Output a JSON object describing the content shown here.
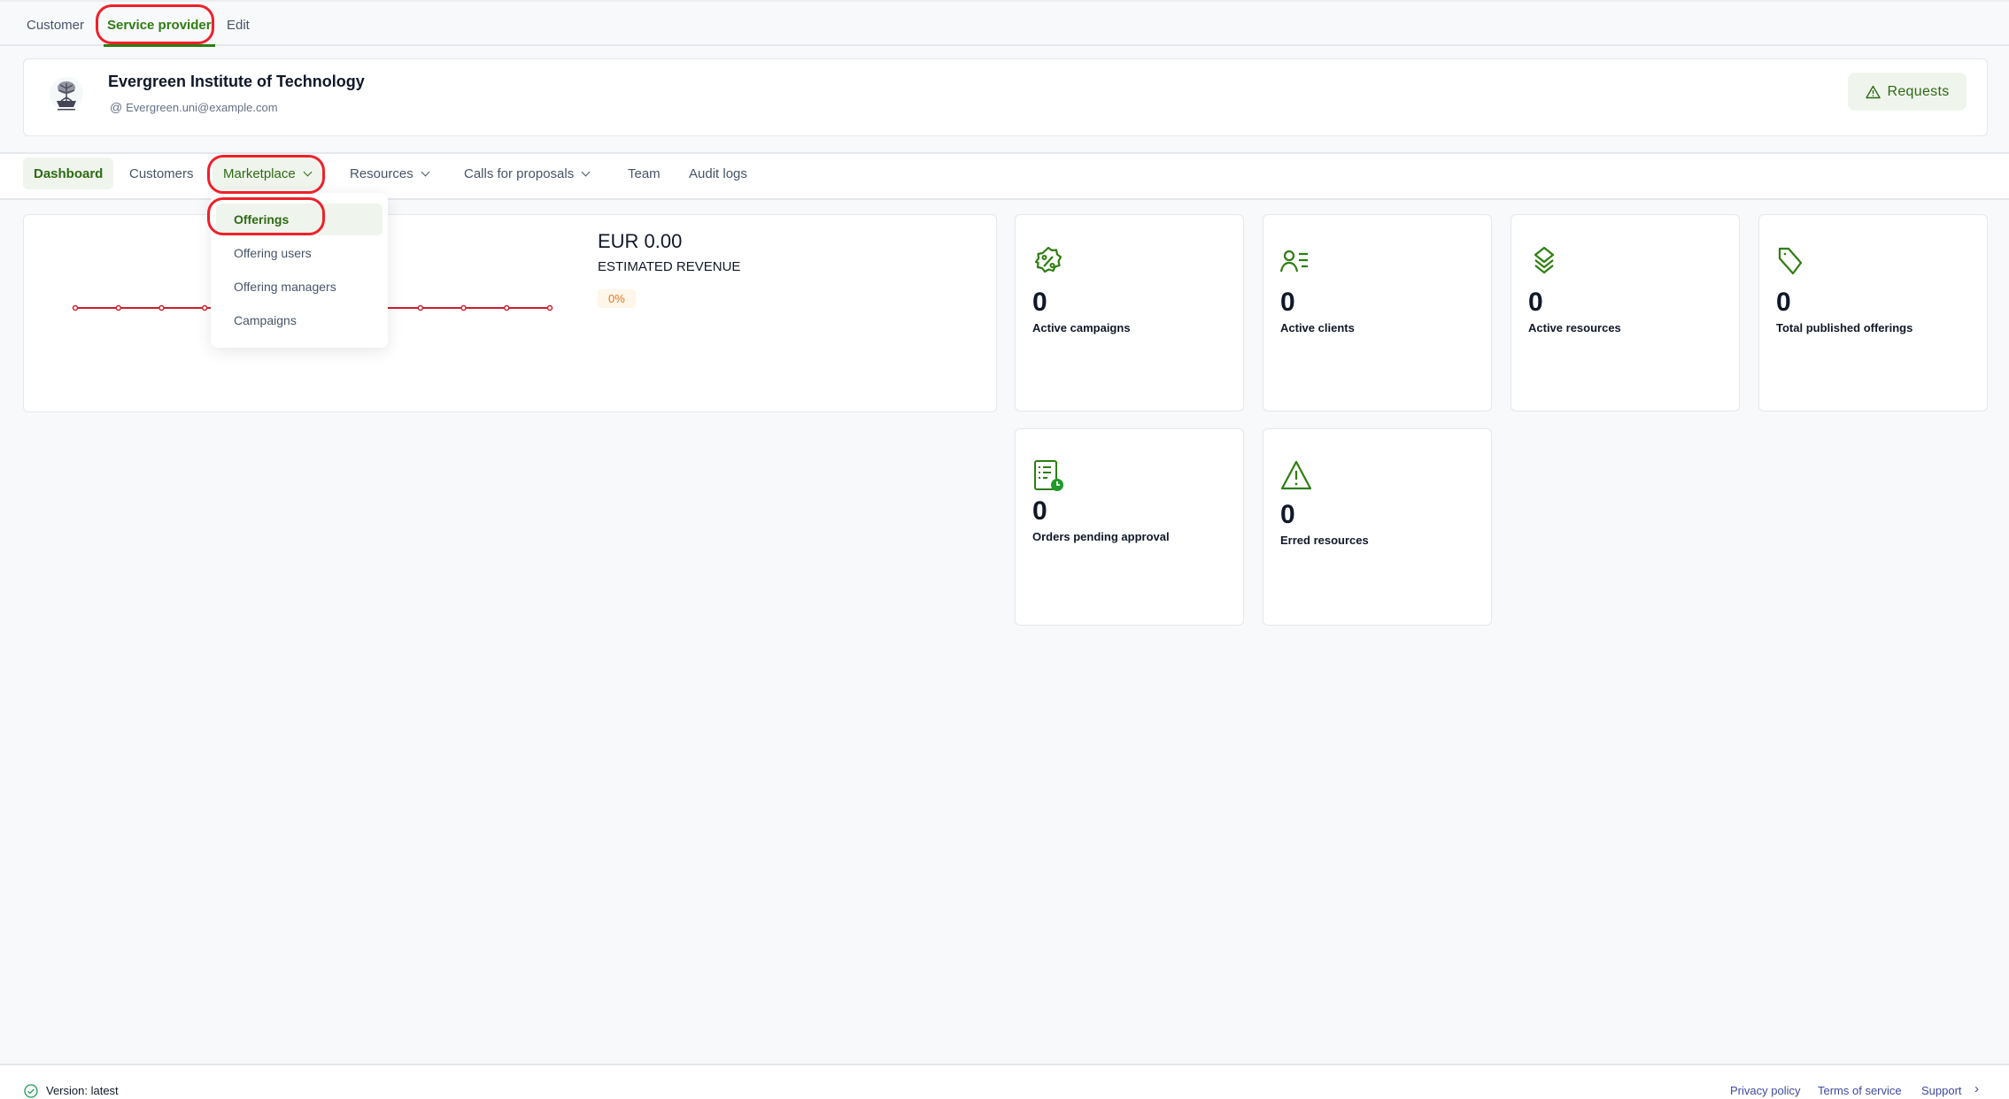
{
  "top_tabs": [
    {
      "label": "Customer"
    },
    {
      "label": "Service provider",
      "active": true
    },
    {
      "label": "Edit"
    }
  ],
  "org": {
    "name": "Evergreen Institute of Technology",
    "email": "Evergreen.uni@example.com",
    "logo_icon": "tree-logo",
    "requests_label": "Requests",
    "requests_icon": "warning-icon"
  },
  "nav": [
    {
      "label": "Dashboard",
      "active": true
    },
    {
      "label": "Customers"
    },
    {
      "label": "Marketplace",
      "dropdown": true,
      "open": true
    },
    {
      "label": "Resources",
      "dropdown": true
    },
    {
      "label": "Calls for proposals",
      "dropdown": true
    },
    {
      "label": "Team"
    },
    {
      "label": "Audit logs"
    }
  ],
  "marketplace_menu": [
    {
      "label": "Offerings",
      "active": true
    },
    {
      "label": "Offering users"
    },
    {
      "label": "Offering managers"
    },
    {
      "label": "Campaigns"
    }
  ],
  "revenue": {
    "amount": "EUR 0.00",
    "label": "ESTIMATED REVENUE",
    "change": "0%"
  },
  "chart_data": {
    "type": "line",
    "values": [
      0,
      0,
      0,
      0,
      0,
      0,
      0,
      0,
      0,
      0,
      0,
      0
    ],
    "color": "#c8202f",
    "grid": false
  },
  "stats": [
    {
      "icon": "discount-badge-icon",
      "value": "0",
      "label": "Active campaigns"
    },
    {
      "icon": "user-list-icon",
      "value": "0",
      "label": "Active clients"
    },
    {
      "icon": "layers-icon",
      "value": "0",
      "label": "Active resources"
    },
    {
      "icon": "tag-icon",
      "value": "0",
      "label": "Total published offerings"
    },
    {
      "icon": "pending-orders-icon",
      "value": "0",
      "label": "Orders pending approval"
    },
    {
      "icon": "warning-icon",
      "value": "0",
      "label": "Erred resources"
    }
  ],
  "footer": {
    "version": "Version: latest",
    "links": [
      "Privacy policy",
      "Terms of service",
      "Support"
    ]
  },
  "colors": {
    "accent": "#2e7d10",
    "highlight": "#f0202a",
    "chart": "#c8202f",
    "link": "#3f4a9e"
  }
}
